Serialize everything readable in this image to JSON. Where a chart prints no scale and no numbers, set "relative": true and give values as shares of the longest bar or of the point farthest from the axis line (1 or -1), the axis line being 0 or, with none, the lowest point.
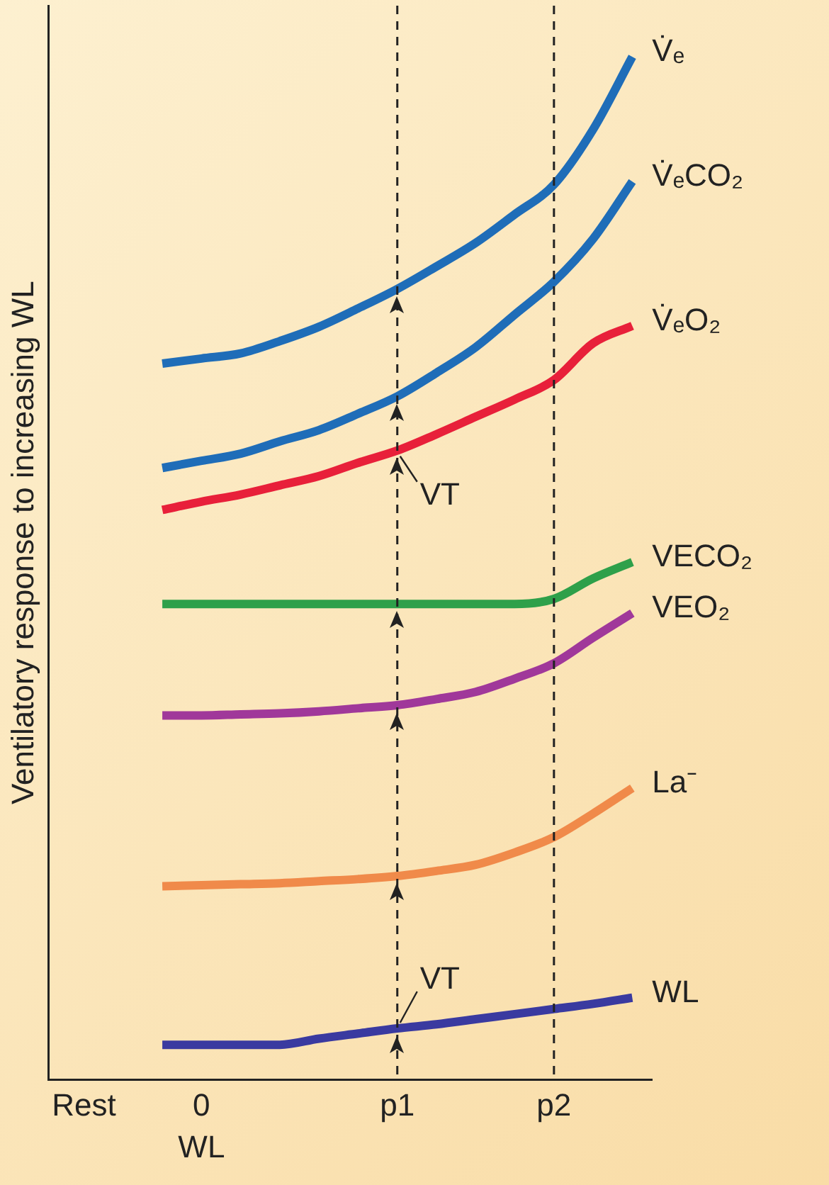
{
  "chart_data": {
    "type": "line",
    "relative": true,
    "ylabel": "Ventilatory response to increasing WL",
    "xlabel": "WL",
    "categories": [
      "Rest",
      null,
      null,
      "0",
      null,
      null,
      null,
      null,
      "p1",
      null,
      null,
      null,
      "p2",
      null,
      null
    ],
    "grid": false,
    "legend": false,
    "marker": "none",
    "line_style": "solid",
    "ref_lines": [
      {
        "axis": "x",
        "value": "p1",
        "color": "#222222",
        "line_style": "dashed"
      },
      {
        "axis": "x",
        "value": "p2",
        "color": "#222222",
        "line_style": "dashed"
      }
    ],
    "annotations": [
      {
        "text": "VT",
        "x": "p1",
        "y": 0.615
      },
      {
        "text": "VT",
        "x": "p1",
        "y": 0.05
      }
    ],
    "series": [
      {
        "name": "V̇ₑ",
        "color": "#1f6db8",
        "values": [
          null,
          null,
          0.7,
          0.705,
          0.71,
          0.722,
          0.736,
          0.754,
          0.773,
          0.795,
          0.818,
          0.846,
          0.875,
          0.929,
          1
        ]
      },
      {
        "name": "V̇ₑCO₂",
        "color": "#1f6db8",
        "values": [
          null,
          null,
          0.598,
          0.605,
          0.612,
          0.624,
          0.635,
          0.651,
          0.668,
          0.691,
          0.716,
          0.748,
          0.78,
          0.822,
          0.878
        ]
      },
      {
        "name": "V̇ₑO₂",
        "color": "#e8203a",
        "values": [
          null,
          null,
          0.557,
          0.565,
          0.572,
          0.581,
          0.59,
          0.603,
          0.615,
          0.631,
          0.648,
          0.665,
          0.684,
          0.72,
          0.737
        ]
      },
      {
        "name": "VECO₂",
        "color": "#2ea04a",
        "values": [
          null,
          null,
          0.465,
          0.465,
          0.465,
          0.465,
          0.465,
          0.465,
          0.465,
          0.465,
          0.465,
          0.465,
          0.47,
          0.49,
          0.506
        ]
      },
      {
        "name": "VEO₂",
        "color": "#a0389a",
        "values": [
          null,
          null,
          0.356,
          0.356,
          0.357,
          0.358,
          0.36,
          0.363,
          0.366,
          0.372,
          0.379,
          0.392,
          0.407,
          0.432,
          0.456
        ]
      },
      {
        "name": "La⁻",
        "color": "#f08a4a",
        "values": [
          null,
          null,
          0.189,
          0.19,
          0.191,
          0.192,
          0.194,
          0.196,
          0.199,
          0.204,
          0.21,
          0.222,
          0.237,
          0.26,
          0.285
        ]
      },
      {
        "name": "WL",
        "color": "#3a3aa0",
        "values": [
          null,
          null,
          0.034,
          0.034,
          0.034,
          0.034,
          0.04,
          0.045,
          0.05,
          0.054,
          0.059,
          0.064,
          0.069,
          0.074,
          0.08
        ]
      }
    ]
  }
}
